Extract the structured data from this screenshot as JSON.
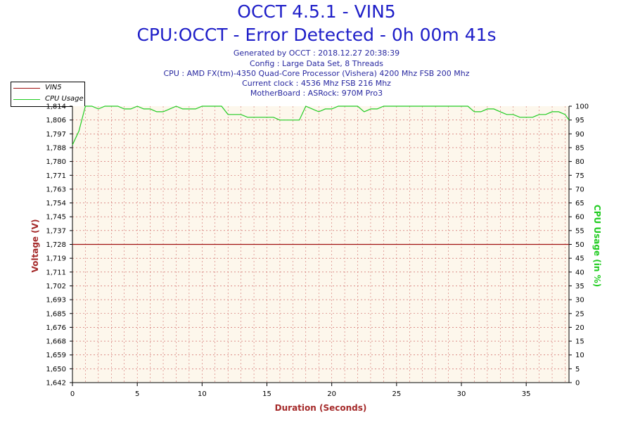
{
  "header": {
    "title": "OCCT 4.5.1 - VIN5",
    "subtitle": "CPU:OCCT - Error Detected - 0h 00m 41s",
    "info_lines": [
      "Generated by OCCT : 2018.12.27 20:38:39",
      "Config : Large Data Set, 8 Threads",
      "CPU : AMD FX(tm)-4350 Quad-Core Processor (Vishera) 4200 Mhz FSB 200 Mhz",
      "Current clock : 4536 Mhz FSB 216 Mhz",
      "MotherBoard : ASRock: 970M Pro3"
    ]
  },
  "legend": {
    "items": [
      {
        "label": "VIN5",
        "color": "#a01010"
      },
      {
        "label": "CPU Usage",
        "color": "#22cc22"
      }
    ]
  },
  "colors": {
    "title": "#1e1ec8",
    "left_axis_label": "#a52a2a",
    "right_axis_label": "#22cc22",
    "x_axis_label": "#a52a2a",
    "plot_background": "#fdf7ec",
    "grid": "#c85050"
  },
  "chart_data": {
    "type": "line",
    "xlabel": "Duration (Seconds)",
    "ylabel_left": "Voltage (V)",
    "ylabel_right": "CPU Usage (in %)",
    "xlim": [
      0,
      38.3
    ],
    "ylim_left": [
      1.642,
      1.814
    ],
    "ylim_right": [
      0,
      100
    ],
    "x_ticks": [
      0,
      5,
      10,
      15,
      20,
      25,
      30,
      35
    ],
    "left_ticks": [
      "1,814",
      "1,806",
      "1,797",
      "1,788",
      "1,780",
      "1,771",
      "1,763",
      "1,754",
      "1,745",
      "1,737",
      "1,728",
      "1,719",
      "1,711",
      "1,702",
      "1,693",
      "1,685",
      "1,676",
      "1,668",
      "1,659",
      "1,650",
      "1,642"
    ],
    "right_ticks": [
      0,
      5,
      10,
      15,
      20,
      25,
      30,
      35,
      40,
      45,
      50,
      55,
      60,
      65,
      70,
      75,
      80,
      85,
      90,
      95,
      100
    ],
    "grid": true,
    "legend_position": "top-left",
    "series": [
      {
        "name": "VIN5",
        "axis": "left",
        "color": "#a01010",
        "x": [
          0,
          38.3
        ],
        "y": [
          1.728,
          1.728
        ]
      },
      {
        "name": "CPU Usage",
        "axis": "right",
        "color": "#22cc22",
        "x": [
          0,
          0.5,
          1,
          1.5,
          2,
          2.5,
          3,
          3.5,
          4,
          4.5,
          5,
          5.5,
          6,
          6.5,
          7,
          7.5,
          8,
          8.5,
          9,
          9.5,
          10,
          10.5,
          11,
          11.5,
          12,
          12.5,
          13,
          13.5,
          14,
          14.5,
          15,
          15.5,
          16,
          16.5,
          17,
          17.5,
          18,
          18.5,
          19,
          19.5,
          20,
          20.5,
          21,
          21.5,
          22,
          22.5,
          23,
          23.5,
          24,
          24.5,
          25,
          25.5,
          26,
          26.5,
          27,
          27.5,
          28,
          28.5,
          29,
          29.5,
          30,
          30.5,
          31,
          31.5,
          32,
          32.5,
          33,
          33.5,
          34,
          34.5,
          35,
          35.5,
          36,
          36.5,
          37,
          37.5,
          38,
          38.3
        ],
        "y": [
          86,
          91,
          100,
          100,
          99,
          100,
          100,
          100,
          99,
          99,
          100,
          99,
          99,
          98,
          98,
          99,
          100,
          99,
          99,
          99,
          100,
          100,
          100,
          100,
          97,
          97,
          97,
          96,
          96,
          96,
          96,
          96,
          95,
          95,
          95,
          95,
          100,
          99,
          98,
          99,
          99,
          100,
          100,
          100,
          100,
          98,
          99,
          99,
          100,
          100,
          100,
          100,
          100,
          100,
          100,
          100,
          100,
          100,
          100,
          100,
          100,
          100,
          98,
          98,
          99,
          99,
          98,
          97,
          97,
          96,
          96,
          96,
          97,
          97,
          98,
          98,
          97,
          95
        ]
      }
    ]
  }
}
